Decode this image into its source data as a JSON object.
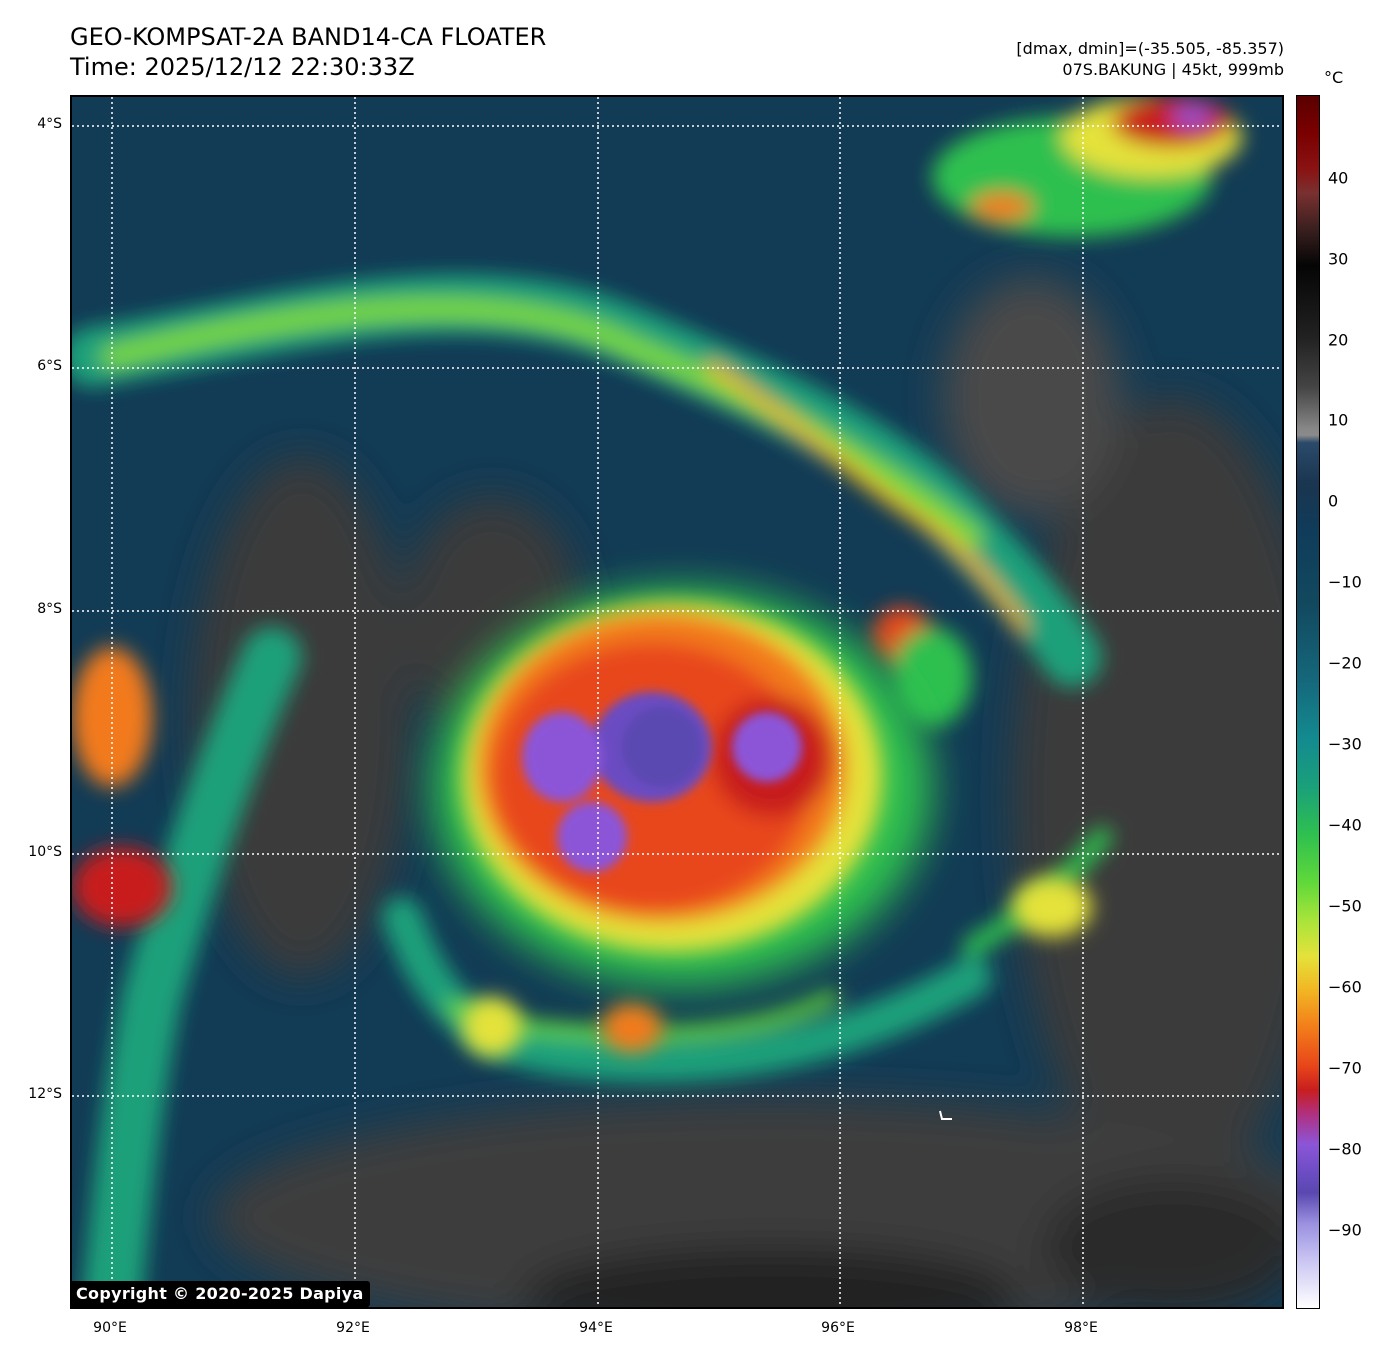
{
  "header": {
    "title_line1": "GEO-KOMPSAT-2A BAND14-CA FLOATER",
    "title_line2": "Time: 2025/12/12 22:30:33Z",
    "info_line1": "[dmax, dmin]=(-35.505, -85.357)",
    "info_line2": "07S.BAKUNG | 45kt, 999mb"
  },
  "axes": {
    "lat_labels": [
      "4°S",
      "6°S",
      "8°S",
      "10°S",
      "12°S"
    ],
    "lon_labels": [
      "90°E",
      "92°E",
      "94°E",
      "96°E",
      "98°E"
    ]
  },
  "colorbar": {
    "unit": "°C",
    "ticks": [
      "40",
      "30",
      "20",
      "10",
      "0",
      "−10",
      "−20",
      "−30",
      "−40",
      "−50",
      "−60",
      "−70",
      "−80",
      "−90"
    ]
  },
  "copyright": "Copyright © 2020-2025 Dapiya"
}
